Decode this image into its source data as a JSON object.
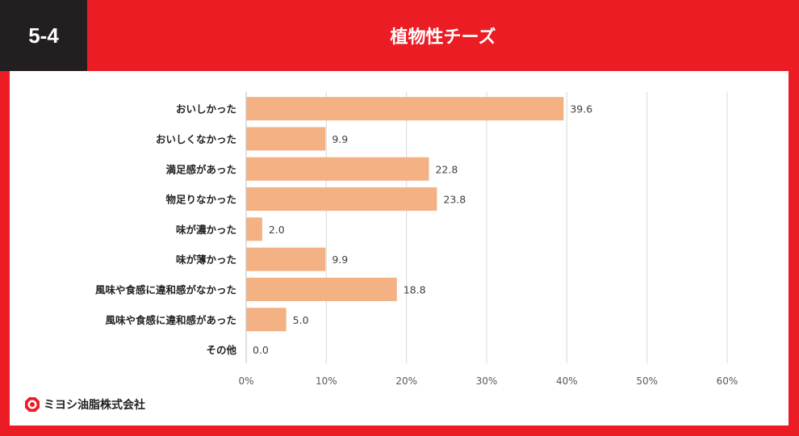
{
  "header": {
    "section_number": "5-4",
    "title": "植物性チーズ"
  },
  "footer": {
    "company": "ミヨシ油脂株式会社",
    "logo_icon": "miyoshi-logo-icon"
  },
  "colors": {
    "brand_red": "#ec1c24",
    "bar": "#f4b183",
    "dark": "#231f20"
  },
  "chart_data": {
    "type": "bar",
    "orientation": "horizontal",
    "title": "植物性チーズ",
    "categories": [
      "おいしかった",
      "おいしくなかった",
      "満足感があった",
      "物足りなかった",
      "味が濃かった",
      "味が薄かった",
      "風味や食感に違和感がなかった",
      "風味や食感に違和感があった",
      "その他"
    ],
    "values": [
      39.6,
      9.9,
      22.8,
      23.8,
      2.0,
      9.9,
      18.8,
      5.0,
      0.0
    ],
    "value_labels": [
      "39.6",
      "9.9",
      "22.8",
      "23.8",
      "2.0",
      "9.9",
      "18.8",
      "5.0",
      "0.0"
    ],
    "xlim": [
      0,
      60
    ],
    "xticks": [
      0,
      10,
      20,
      30,
      40,
      50,
      60
    ],
    "xtick_labels": [
      "0%",
      "10%",
      "20%",
      "30%",
      "40%",
      "50%",
      "60%"
    ],
    "xlabel": "",
    "ylabel": "",
    "grid": true
  }
}
